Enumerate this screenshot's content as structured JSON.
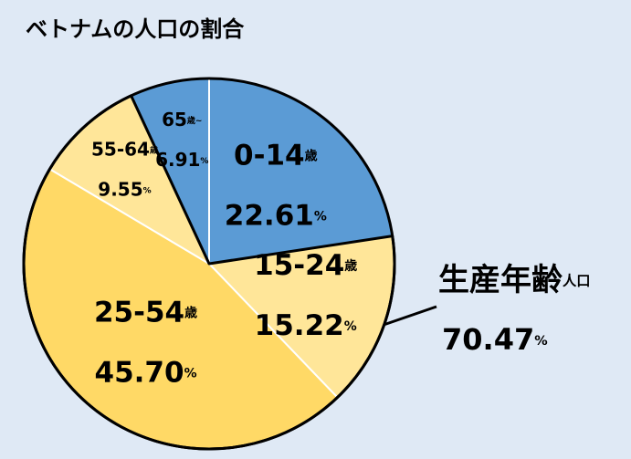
{
  "chart_data": {
    "type": "pie",
    "title": "ベトナムの人口の割合",
    "categories": [
      "0-14歳",
      "15-24歳",
      "25-54歳",
      "55-64歳",
      "65歳~"
    ],
    "values": [
      22.61,
      15.22,
      45.7,
      9.55,
      6.91
    ],
    "value_labels": [
      "22.61%",
      "15.22%",
      "45.70%",
      "9.55%",
      "6.91%"
    ],
    "colors": [
      "#5b9bd5",
      "#ffe699",
      "#ffd966",
      "#ffe699",
      "#5b9bd5"
    ],
    "annotation": {
      "text": "生産年齢人口",
      "value_label": "70.47%"
    }
  }
}
